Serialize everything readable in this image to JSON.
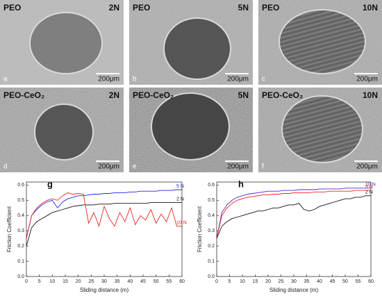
{
  "panels": [
    {
      "coating": "PEO",
      "load": "2N",
      "letter": "a",
      "scale": "200μm"
    },
    {
      "coating": "PEO",
      "load": "5N",
      "letter": "b",
      "scale": "200μm"
    },
    {
      "coating": "PEO",
      "load": "10N",
      "letter": "c",
      "scale": "200μm"
    },
    {
      "coating": "PEO-CeO₂",
      "load": "2N",
      "letter": "d",
      "scale": "200μm"
    },
    {
      "coating": "PEO-CeO₂",
      "load": "5N",
      "letter": "e",
      "scale": "200μm"
    },
    {
      "coating": "PEO-CeO₂",
      "load": "10N",
      "letter": "f",
      "scale": "200μm"
    }
  ],
  "chart_data": [
    {
      "type": "line",
      "panel": "g",
      "xlabel": "Sliding distance (m)",
      "ylabel": "Friction Coefficient",
      "xlim": [
        0,
        60
      ],
      "xticks": [
        0,
        5,
        10,
        15,
        20,
        25,
        30,
        35,
        40,
        45,
        50,
        55,
        60
      ],
      "ylim": [
        0,
        0.62
      ],
      "yticks": [
        {
          "value": 0,
          "label": "0.0"
        },
        0.1,
        0.2,
        0.3,
        0.4,
        0.5,
        0.6
      ],
      "x": [
        0,
        2,
        4,
        6,
        8,
        10,
        12,
        14,
        16,
        18,
        20,
        22,
        24,
        26,
        28,
        30,
        32,
        34,
        36,
        38,
        40,
        42,
        44,
        46,
        48,
        50,
        52,
        54,
        56,
        58,
        60
      ],
      "series": [
        {
          "name": "5 N",
          "color": "#2222dd",
          "values": [
            0.25,
            0.4,
            0.44,
            0.47,
            0.49,
            0.5,
            0.45,
            0.49,
            0.51,
            0.52,
            0.53,
            0.53,
            0.535,
            0.54,
            0.54,
            0.545,
            0.545,
            0.55,
            0.55,
            0.55,
            0.555,
            0.555,
            0.56,
            0.56,
            0.56,
            0.56,
            0.565,
            0.565,
            0.565,
            0.57,
            0.57
          ]
        },
        {
          "name": "2 N",
          "color": "#111111",
          "values": [
            0.2,
            0.32,
            0.36,
            0.38,
            0.4,
            0.42,
            0.43,
            0.44,
            0.45,
            0.46,
            0.465,
            0.47,
            0.47,
            0.47,
            0.475,
            0.475,
            0.475,
            0.48,
            0.48,
            0.48,
            0.48,
            0.48,
            0.48,
            0.48,
            0.485,
            0.485,
            0.485,
            0.485,
            0.485,
            0.485,
            0.485
          ]
        },
        {
          "name": "10 N",
          "color": "#ee2222",
          "values": [
            0.25,
            0.4,
            0.45,
            0.48,
            0.5,
            0.51,
            0.5,
            0.53,
            0.55,
            0.54,
            0.545,
            0.54,
            0.35,
            0.42,
            0.33,
            0.46,
            0.38,
            0.33,
            0.42,
            0.36,
            0.45,
            0.34,
            0.4,
            0.37,
            0.44,
            0.35,
            0.41,
            0.36,
            0.45,
            0.33,
            0.33
          ]
        }
      ]
    },
    {
      "type": "line",
      "panel": "h",
      "xlabel": "Sliding distance (m)",
      "ylabel": "Friction Coefficient",
      "xlim": [
        0,
        60
      ],
      "xticks": [
        0,
        5,
        10,
        15,
        20,
        25,
        30,
        35,
        40,
        45,
        50,
        55,
        60
      ],
      "ylim": [
        0,
        0.62
      ],
      "yticks": [
        {
          "value": 0,
          "label": "0.0"
        },
        0.1,
        0.2,
        0.3,
        0.4,
        0.5,
        0.6
      ],
      "x": [
        0,
        2,
        4,
        6,
        8,
        10,
        12,
        14,
        16,
        18,
        20,
        22,
        24,
        26,
        28,
        30,
        32,
        34,
        36,
        38,
        40,
        42,
        44,
        46,
        48,
        50,
        52,
        54,
        56,
        58,
        60
      ],
      "series": [
        {
          "name": "10 N",
          "color": "#5522cc",
          "values": [
            0.25,
            0.42,
            0.47,
            0.5,
            0.52,
            0.53,
            0.54,
            0.545,
            0.55,
            0.555,
            0.56,
            0.56,
            0.56,
            0.565,
            0.565,
            0.565,
            0.57,
            0.57,
            0.57,
            0.57,
            0.575,
            0.575,
            0.575,
            0.575,
            0.575,
            0.58,
            0.58,
            0.58,
            0.58,
            0.58,
            0.58
          ]
        },
        {
          "name": "5 N",
          "color": "#ee2222",
          "values": [
            0.25,
            0.4,
            0.45,
            0.48,
            0.5,
            0.51,
            0.52,
            0.525,
            0.53,
            0.535,
            0.535,
            0.54,
            0.54,
            0.545,
            0.545,
            0.55,
            0.55,
            0.55,
            0.55,
            0.555,
            0.555,
            0.555,
            0.56,
            0.56,
            0.56,
            0.56,
            0.56,
            0.565,
            0.565,
            0.565,
            0.565
          ]
        },
        {
          "name": "2 N",
          "color": "#111111",
          "values": [
            0.25,
            0.33,
            0.36,
            0.38,
            0.39,
            0.4,
            0.41,
            0.42,
            0.43,
            0.43,
            0.44,
            0.45,
            0.45,
            0.46,
            0.47,
            0.47,
            0.48,
            0.44,
            0.43,
            0.44,
            0.46,
            0.47,
            0.48,
            0.49,
            0.5,
            0.51,
            0.51,
            0.52,
            0.52,
            0.53,
            0.53
          ]
        }
      ]
    }
  ]
}
